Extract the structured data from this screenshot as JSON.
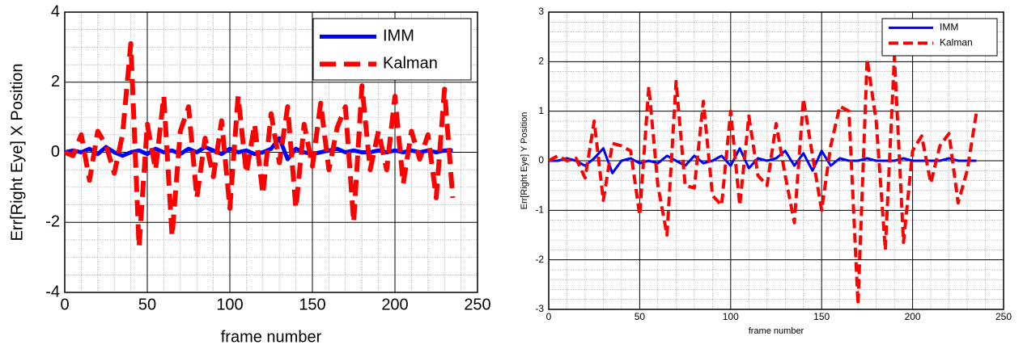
{
  "chart_data": [
    {
      "type": "line",
      "xlabel": "frame number",
      "ylabel": "Err[Right Eye] X Position",
      "x": [
        0,
        5,
        10,
        15,
        20,
        25,
        30,
        35,
        40,
        45,
        50,
        55,
        60,
        65,
        70,
        75,
        80,
        85,
        90,
        95,
        100,
        105,
        110,
        115,
        120,
        125,
        130,
        135,
        140,
        145,
        150,
        155,
        160,
        165,
        170,
        175,
        180,
        185,
        190,
        195,
        200,
        205,
        210,
        215,
        220,
        225,
        230,
        235
      ],
      "series": [
        {
          "name": "IMM",
          "color": "#0000ff",
          "dash": false,
          "values": [
            0,
            0.05,
            0,
            0.1,
            -0.05,
            0.15,
            0,
            -0.1,
            0,
            0.05,
            -0.05,
            0.1,
            0,
            0.05,
            -0.05,
            0.1,
            0,
            0.15,
            0.05,
            -0.05,
            0.1,
            0,
            0.05,
            -0.05,
            0,
            0.1,
            0.4,
            -0.2,
            0.1,
            0,
            -0.05,
            0,
            0.05,
            0.1,
            0,
            0.05,
            0,
            0,
            0.05,
            0,
            0.05,
            0,
            0.05,
            0,
            0.05,
            0,
            0.05,
            0.05
          ]
        },
        {
          "name": "Kalman",
          "color": "#ff0000",
          "dash": true,
          "values": [
            0,
            -0.1,
            0.5,
            -0.8,
            0.6,
            0.2,
            -0.6,
            0.5,
            3.1,
            -2.7,
            0.8,
            -0.5,
            1.6,
            -2.4,
            0.6,
            1.3,
            -1.3,
            0.4,
            -0.7,
            0.9,
            -1.6,
            1.6,
            -0.6,
            0.8,
            -1.2,
            1.1,
            -0.3,
            1.3,
            -1.6,
            0.8,
            -0.4,
            1.4,
            -0.5,
            0.7,
            1.3,
            -2.0,
            1.9,
            -0.5,
            0.6,
            -0.5,
            1.6,
            -0.9,
            0.6,
            -0.2,
            0.5,
            -1.3,
            1.8,
            -1.3
          ]
        }
      ],
      "xlim": [
        0,
        250
      ],
      "xticks": [
        0,
        50,
        100,
        150,
        200,
        250
      ],
      "ylim": [
        -4,
        4
      ],
      "yticks": [
        -4,
        -2,
        0,
        2,
        4
      ],
      "grid": true,
      "minor_grid": [
        5,
        4
      ],
      "legend": "upper right"
    },
    {
      "type": "line",
      "xlabel": "frame number",
      "ylabel": "Err[Right Eye] Y Position",
      "x": [
        0,
        5,
        10,
        15,
        20,
        25,
        30,
        35,
        40,
        45,
        50,
        55,
        60,
        65,
        70,
        75,
        80,
        85,
        90,
        95,
        100,
        105,
        110,
        115,
        120,
        125,
        130,
        135,
        140,
        145,
        150,
        155,
        160,
        165,
        170,
        175,
        180,
        185,
        190,
        195,
        200,
        205,
        210,
        215,
        220,
        225,
        230,
        235
      ],
      "series": [
        {
          "name": "IMM",
          "color": "#0000ff",
          "dash": false,
          "values": [
            0,
            0,
            0.05,
            0,
            -0.1,
            0.05,
            0.25,
            -0.25,
            0,
            0.05,
            -0.05,
            0,
            -0.05,
            0.1,
            0,
            -0.1,
            0.1,
            -0.05,
            0,
            0.1,
            -0.1,
            0.25,
            -0.15,
            0.05,
            0,
            0.05,
            0.2,
            -0.1,
            0.15,
            -0.2,
            0.2,
            -0.1,
            0.05,
            0,
            0,
            0.05,
            0,
            0,
            0,
            0.05,
            0,
            0,
            0,
            0,
            0.05,
            0,
            0,
            0
          ]
        },
        {
          "name": "Kalman",
          "color": "#ff0000",
          "dash": true,
          "values": [
            0,
            0.1,
            0,
            0.05,
            -0.35,
            0.8,
            -0.8,
            0.35,
            0.3,
            0.2,
            -1.1,
            1.5,
            -0.5,
            -1.5,
            1.6,
            -0.5,
            -0.55,
            1.2,
            -0.7,
            -0.9,
            1.0,
            -0.9,
            0.9,
            -0.3,
            -0.5,
            0.75,
            -0.3,
            -1.25,
            1.25,
            0.1,
            -1.0,
            0.3,
            1.1,
            1.0,
            -2.9,
            2.05,
            0.8,
            -1.8,
            2.1,
            -1.65,
            0.2,
            0.5,
            -0.45,
            0.3,
            0.55,
            -0.85,
            -0.2,
            0.95
          ]
        }
      ],
      "xlim": [
        0,
        250
      ],
      "xticks": [
        0,
        50,
        100,
        150,
        200,
        250
      ],
      "ylim": [
        -3,
        3
      ],
      "yticks": [
        -3,
        -2,
        -1,
        0,
        1,
        2,
        3
      ],
      "grid": true,
      "minor_grid": [
        5,
        5
      ],
      "legend": "upper right"
    }
  ]
}
